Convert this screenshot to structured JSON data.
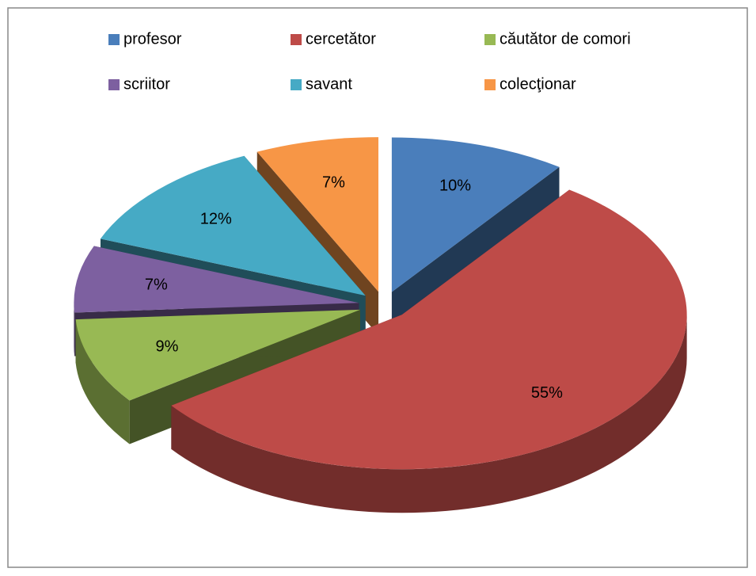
{
  "chart_data": {
    "type": "pie",
    "categories": [
      "profesor",
      "cercetător",
      "căutător de comori",
      "scriitor",
      "savant",
      "colecţionar"
    ],
    "values": [
      10,
      55,
      9,
      7,
      12,
      7
    ],
    "value_labels": [
      "10%",
      "55%",
      "9%",
      "7%",
      "12%",
      "7%"
    ],
    "colors": [
      "#4a7ebb",
      "#be4b48",
      "#98b954",
      "#7d60a0",
      "#46aac5",
      "#f79646"
    ],
    "legend": "top"
  }
}
